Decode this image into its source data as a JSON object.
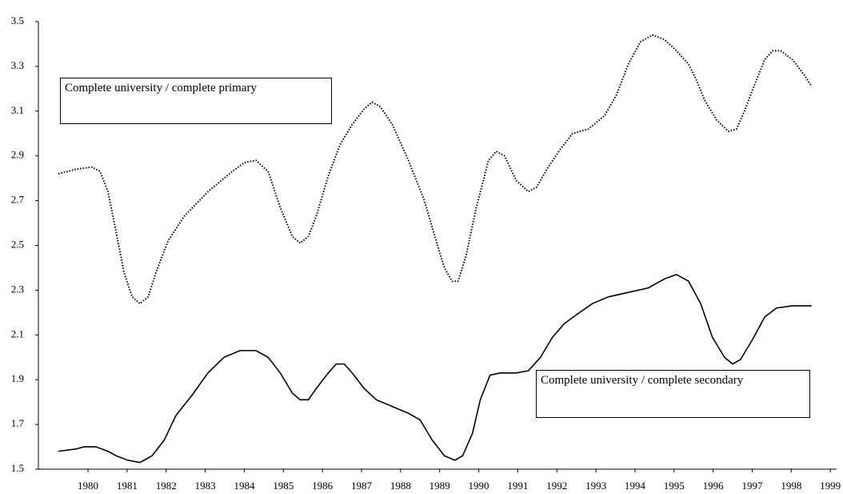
{
  "chart_data": {
    "type": "line",
    "xlim": [
      1978.73,
      1999.16
    ],
    "xticks": [
      1980,
      1981,
      1982,
      1983,
      1984,
      1985,
      1986,
      1987,
      1988,
      1989,
      1990,
      1991,
      1992,
      1993,
      1994,
      1995,
      1996,
      1997,
      1998,
      1999
    ],
    "ylim": [
      1.5,
      3.5
    ],
    "yticks": [
      1.5,
      1.7,
      1.9,
      2.1,
      2.3,
      2.5,
      2.7,
      2.9,
      3.1,
      3.3,
      3.5
    ],
    "series": [
      {
        "name": "Complete university / complete primary",
        "color": "#000000",
        "style": "dotted",
        "x": [
          1979.24,
          1979.69,
          1980.1,
          1980.31,
          1980.51,
          1980.72,
          1980.92,
          1981.13,
          1981.33,
          1981.54,
          1981.74,
          1982.05,
          1982.46,
          1983.07,
          1983.69,
          1984.0,
          1984.3,
          1984.61,
          1984.92,
          1985.23,
          1985.43,
          1985.64,
          1985.84,
          1986.15,
          1986.45,
          1986.76,
          1987.07,
          1987.27,
          1987.48,
          1987.79,
          1988.2,
          1988.61,
          1988.91,
          1989.12,
          1989.32,
          1989.47,
          1989.67,
          1989.94,
          1990.25,
          1990.45,
          1990.66,
          1990.96,
          1991.27,
          1991.48,
          1991.78,
          1992.09,
          1992.4,
          1992.81,
          1993.22,
          1993.52,
          1993.83,
          1994.14,
          1994.45,
          1994.75,
          1995.06,
          1995.37,
          1995.57,
          1995.78,
          1996.09,
          1996.39,
          1996.6,
          1996.8,
          1997.11,
          1997.32,
          1997.52,
          1997.73,
          1998.03,
          1998.34,
          1998.52
        ],
        "values": [
          2.82,
          2.84,
          2.85,
          2.83,
          2.74,
          2.56,
          2.38,
          2.27,
          2.24,
          2.27,
          2.38,
          2.52,
          2.63,
          2.74,
          2.83,
          2.87,
          2.88,
          2.83,
          2.67,
          2.54,
          2.51,
          2.54,
          2.63,
          2.81,
          2.95,
          3.04,
          3.11,
          3.14,
          3.12,
          3.04,
          2.88,
          2.7,
          2.52,
          2.4,
          2.34,
          2.34,
          2.45,
          2.67,
          2.88,
          2.92,
          2.9,
          2.79,
          2.74,
          2.76,
          2.85,
          2.93,
          3.0,
          3.02,
          3.08,
          3.17,
          3.31,
          3.41,
          3.44,
          3.42,
          3.37,
          3.31,
          3.24,
          3.15,
          3.06,
          3.01,
          3.02,
          3.1,
          3.24,
          3.33,
          3.37,
          3.37,
          3.33,
          3.26,
          3.21
        ]
      },
      {
        "name": "Complete university / complete secondary",
        "color": "#000000",
        "style": "solid",
        "x": [
          1979.24,
          1979.69,
          1979.9,
          1980.2,
          1980.51,
          1980.72,
          1981.02,
          1981.33,
          1981.64,
          1981.95,
          1982.25,
          1982.66,
          1983.07,
          1983.48,
          1983.89,
          1984.3,
          1984.61,
          1984.92,
          1985.23,
          1985.43,
          1985.64,
          1985.84,
          1986.15,
          1986.35,
          1986.56,
          1986.76,
          1987.07,
          1987.38,
          1987.79,
          1988.2,
          1988.5,
          1988.81,
          1989.12,
          1989.39,
          1989.59,
          1989.84,
          1990.04,
          1990.29,
          1990.55,
          1990.96,
          1991.27,
          1991.58,
          1991.89,
          1992.19,
          1992.5,
          1992.91,
          1993.32,
          1993.83,
          1994.34,
          1994.75,
          1995.06,
          1995.37,
          1995.68,
          1995.98,
          1996.29,
          1996.5,
          1996.7,
          1997.01,
          1997.32,
          1997.62,
          1998.03,
          1998.52
        ],
        "values": [
          1.58,
          1.59,
          1.6,
          1.6,
          1.58,
          1.56,
          1.54,
          1.53,
          1.56,
          1.63,
          1.74,
          1.83,
          1.93,
          2.0,
          2.03,
          2.03,
          2.0,
          1.93,
          1.84,
          1.81,
          1.81,
          1.86,
          1.93,
          1.97,
          1.97,
          1.93,
          1.86,
          1.81,
          1.78,
          1.75,
          1.72,
          1.63,
          1.56,
          1.54,
          1.56,
          1.66,
          1.81,
          1.92,
          1.93,
          1.93,
          1.94,
          2.0,
          2.09,
          2.15,
          2.19,
          2.24,
          2.27,
          2.29,
          2.31,
          2.35,
          2.37,
          2.34,
          2.24,
          2.09,
          2.0,
          1.97,
          1.99,
          2.08,
          2.18,
          2.22,
          2.23,
          2.23
        ]
      }
    ]
  }
}
